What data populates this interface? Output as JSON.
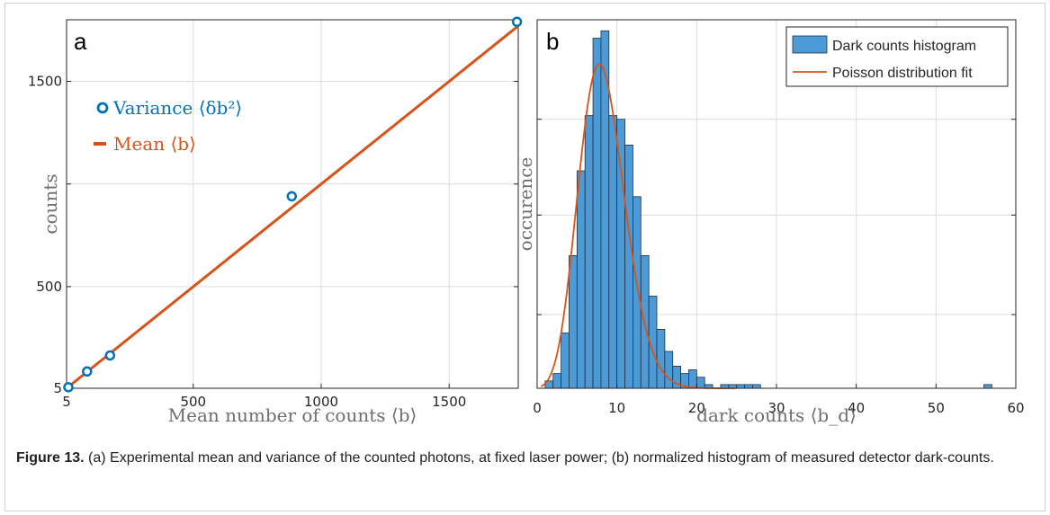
{
  "chart_data": [
    {
      "type": "scatter",
      "panel_label": "a",
      "xlabel": "Mean number of counts ⟨b⟩",
      "ylabel": "counts",
      "xlim": [
        5,
        1770
      ],
      "ylim": [
        5,
        1800
      ],
      "xticks": [
        5,
        500,
        1000,
        1500
      ],
      "yticks": [
        5,
        500,
        1500
      ],
      "grid": true,
      "legend_position": "top-left",
      "series": [
        {
          "name": "Variance ⟨δb²⟩",
          "kind": "markers",
          "color": "#0072BD",
          "x": [
            12,
            85,
            175,
            885,
            1765
          ],
          "y": [
            10,
            87,
            165,
            940,
            1790
          ]
        },
        {
          "name": "Mean ⟨b⟩",
          "kind": "line",
          "color": "#D95319",
          "x": [
            5,
            1770
          ],
          "y": [
            5,
            1770
          ]
        }
      ]
    },
    {
      "type": "bar",
      "panel_label": "b",
      "xlabel": "dark counts ⟨b_d⟩",
      "ylabel": "occurence",
      "xlim": [
        0,
        60
      ],
      "ylim": [
        0,
        1.0
      ],
      "xticks": [
        0,
        10,
        20,
        30,
        40,
        50,
        60
      ],
      "grid": true,
      "legend_position": "top-right",
      "bin_width": 1,
      "bar_color": "#4D9BD6",
      "bins_start": [
        1,
        2,
        3,
        4,
        5,
        6,
        7,
        8,
        9,
        10,
        11,
        12,
        13,
        14,
        15,
        16,
        17,
        18,
        19,
        20,
        21,
        23,
        24,
        25,
        26,
        27,
        56
      ],
      "bins_value": [
        0.02,
        0.04,
        0.15,
        0.36,
        0.59,
        0.74,
        0.95,
        0.97,
        0.74,
        0.73,
        0.66,
        0.52,
        0.36,
        0.25,
        0.16,
        0.1,
        0.06,
        0.04,
        0.05,
        0.03,
        0.01,
        0.01,
        0.01,
        0.01,
        0.01,
        0.01,
        0.01
      ],
      "series": [
        {
          "name": "Dark counts histogram",
          "kind": "histogram",
          "color": "#4D9BD6"
        },
        {
          "name": "Poisson distribution fit",
          "kind": "curve",
          "color": "#D95319",
          "lambda": 8.3,
          "peak": 0.88
        }
      ]
    }
  ],
  "caption": {
    "label": "Figure 13.",
    "text": " (a) Experimental mean and variance of the counted photons, at fixed laser power; (b) normalized histogram of measured detector dark-counts."
  }
}
